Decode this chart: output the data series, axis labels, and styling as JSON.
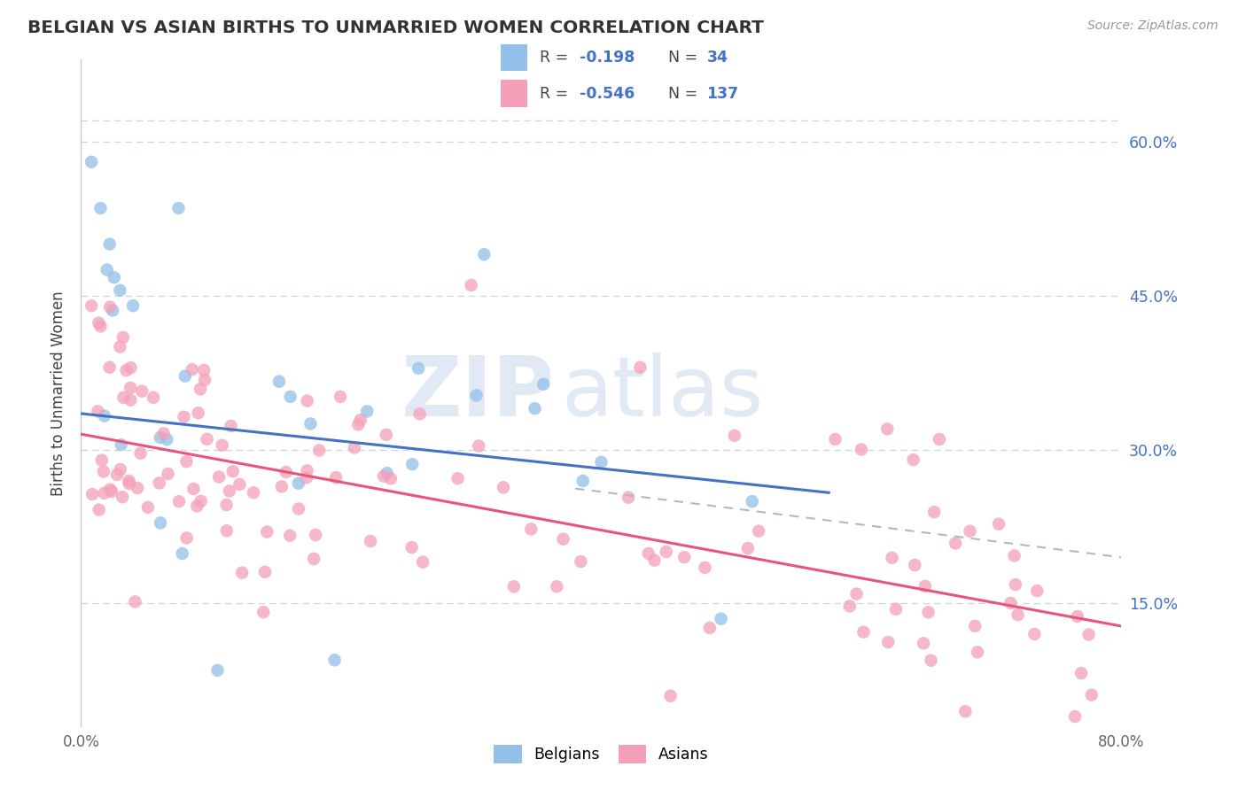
{
  "title": "BELGIAN VS ASIAN BIRTHS TO UNMARRIED WOMEN CORRELATION CHART",
  "source": "Source: ZipAtlas.com",
  "ylabel": "Births to Unmarried Women",
  "xlim": [
    0.0,
    0.8
  ],
  "ylim": [
    0.03,
    0.68
  ],
  "yticks": [
    0.15,
    0.3,
    0.45,
    0.6
  ],
  "yticklabels": [
    "15.0%",
    "30.0%",
    "45.0%",
    "60.0%"
  ],
  "belgian_color": "#92c0e8",
  "asian_color": "#f4a0b8",
  "trend_belgian_color": "#4472c4",
  "trend_asian_color": "#e8547a",
  "trend_gray_color": "#b0b8c8",
  "watermark_zip": "ZIP",
  "watermark_atlas": "atlas",
  "grid_color": "#c8d4e8",
  "bel_trend_x0": 0.0,
  "bel_trend_x1": 0.575,
  "bel_trend_y0": 0.335,
  "bel_trend_y1": 0.258,
  "asi_trend_x0": 0.0,
  "asi_trend_x1": 0.8,
  "asi_trend_y0": 0.315,
  "asi_trend_y1": 0.128,
  "gray_trend_x0": 0.38,
  "gray_trend_x1": 0.8,
  "gray_trend_y0": 0.262,
  "gray_trend_y1": 0.195
}
